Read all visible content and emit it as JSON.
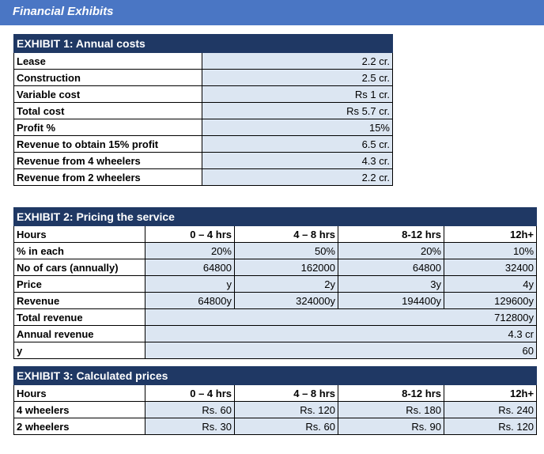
{
  "title": "Financial Exhibits",
  "ex1": {
    "title": "EXHIBIT 1: Annual costs",
    "rows": [
      {
        "label": "Lease",
        "value": "2.2 cr."
      },
      {
        "label": "Construction",
        "value": "2.5 cr."
      },
      {
        "label": "Variable cost",
        "value": "Rs 1 cr."
      },
      {
        "label": "Total cost",
        "value": "Rs 5.7 cr."
      },
      {
        "label": "Profit %",
        "value": "15%"
      },
      {
        "label": "Revenue to obtain 15% profit",
        "value": "6.5 cr."
      },
      {
        "label": "Revenue from 4 wheelers",
        "value": "4.3 cr."
      },
      {
        "label": "Revenue from 2 wheelers",
        "value": "2.2 cr."
      }
    ]
  },
  "ex2": {
    "title": "EXHIBIT 2: Pricing the service",
    "header": [
      "Hours",
      "0 – 4 hrs",
      "4 – 8 hrs",
      "8-12 hrs",
      "12h+"
    ],
    "rows": [
      {
        "label": "% in each",
        "values": [
          "20%",
          "50%",
          "20%",
          "10%"
        ]
      },
      {
        "label": "No of cars (annually)",
        "values": [
          "64800",
          "162000",
          "64800",
          "32400"
        ]
      },
      {
        "label": "Price",
        "values": [
          "y",
          "2y",
          "3y",
          "4y"
        ]
      },
      {
        "label": "Revenue",
        "values": [
          "64800y",
          "324000y",
          "194400y",
          "129600y"
        ]
      }
    ],
    "totals": [
      {
        "label": "Total revenue",
        "value": "712800y"
      },
      {
        "label": "Annual revenue",
        "value": "4.3 cr"
      },
      {
        "label": "y",
        "value": "60"
      }
    ]
  },
  "ex3": {
    "title": "EXHIBIT 3: Calculated prices",
    "header": [
      "Hours",
      "0 – 4 hrs",
      "4 – 8 hrs",
      "8-12 hrs",
      "12h+"
    ],
    "rows": [
      {
        "label": "4 wheelers",
        "values": [
          "Rs. 60",
          "Rs. 120",
          "Rs. 180",
          "Rs. 240"
        ]
      },
      {
        "label": "2 wheelers",
        "values": [
          "Rs. 30",
          "Rs. 60",
          "Rs. 90",
          "Rs. 120"
        ]
      }
    ]
  }
}
